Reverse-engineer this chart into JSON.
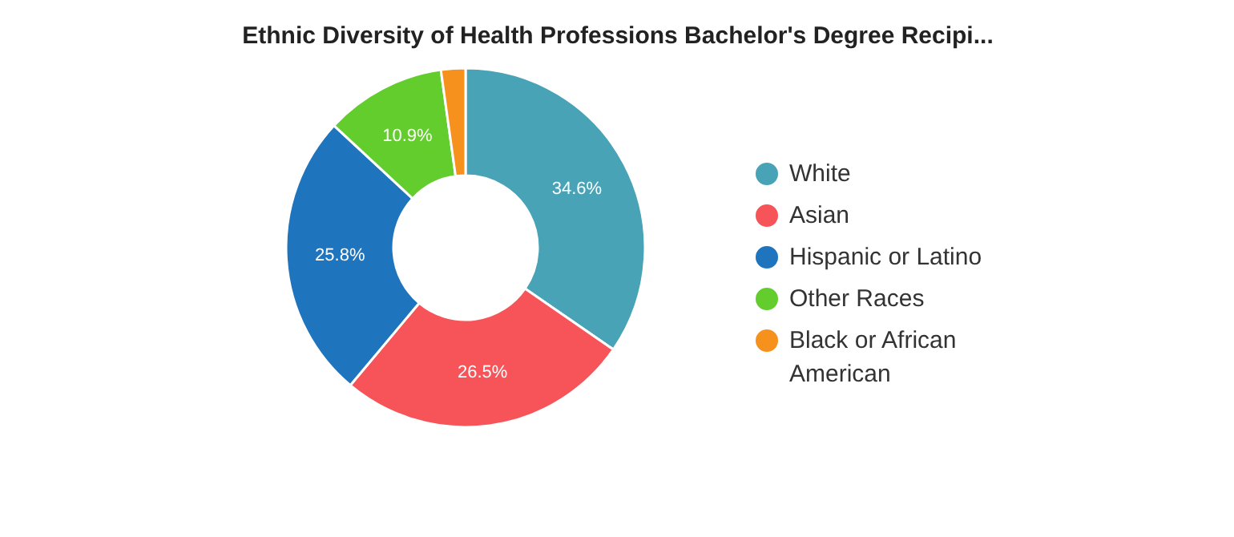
{
  "chart_data": {
    "type": "donut",
    "title": "Ethnic Diversity of Health Professions Bachelor's Degree Recipi...",
    "categories": [
      "White",
      "Asian",
      "Hispanic or Latino",
      "Other Races",
      "Black or African American"
    ],
    "values": [
      34.6,
      26.5,
      25.8,
      10.9,
      2.2
    ],
    "colors": [
      "#48a3b6",
      "#f65458",
      "#1f74be",
      "#62cd2c",
      "#f7911d"
    ],
    "value_labels": [
      "34.6%",
      "26.5%",
      "25.8%",
      "10.9%",
      null
    ],
    "legend": "right"
  }
}
